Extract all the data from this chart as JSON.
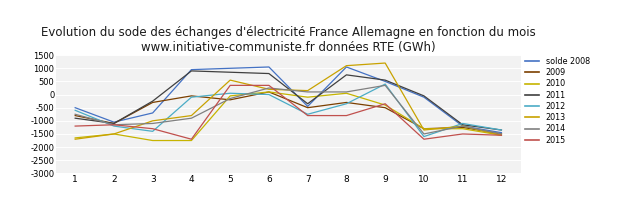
{
  "title": "Evolution du sode des échanges d'électricité France Allemagne en fonction du mois\nwww.initiative-communiste.fr données RTE (GWh)",
  "months": [
    1,
    2,
    3,
    4,
    5,
    6,
    7,
    8,
    9,
    10,
    11,
    12
  ],
  "series": {
    "solde 2008": [
      -500,
      -1050,
      -700,
      950,
      1000,
      1050,
      -450,
      1050,
      500,
      -100,
      -1200,
      -1450
    ],
    "2009": [
      -800,
      -1100,
      -300,
      -50,
      -200,
      100,
      -500,
      -300,
      -500,
      -1300,
      -1250,
      -1500
    ],
    "2010": [
      -1650,
      -1500,
      -1750,
      -1750,
      -50,
      100,
      -100,
      50,
      -400,
      -1300,
      -1300,
      -1550
    ],
    "2011": [
      -900,
      -1100,
      -250,
      900,
      850,
      800,
      -350,
      750,
      550,
      -50,
      -1150,
      -1350
    ],
    "2012": [
      -600,
      -1200,
      -1400,
      -100,
      50,
      0,
      -750,
      -350,
      400,
      -1600,
      -1100,
      -1350
    ],
    "2013": [
      -1700,
      -1500,
      -1000,
      -800,
      550,
      200,
      150,
      1100,
      1200,
      -1350,
      -1200,
      -1550
    ],
    "2014": [
      -750,
      -1150,
      -1100,
      -900,
      -150,
      250,
      100,
      100,
      350,
      -1500,
      -1200,
      -1500
    ],
    "2015": [
      -1200,
      -1150,
      -1300,
      -1700,
      350,
      350,
      -800,
      -800,
      -350,
      -1700,
      -1500,
      -1550
    ]
  },
  "colors": {
    "solde 2008": "#4472C4",
    "2009": "#7B3F00",
    "2010": "#C6B400",
    "2011": "#404040",
    "2012": "#4BACC6",
    "2013": "#C8A200",
    "2014": "#808080",
    "2015": "#C0504D"
  },
  "ylim": [
    -3000,
    1500
  ],
  "yticks": [
    -3000,
    -2500,
    -2000,
    -1500,
    -1000,
    -500,
    0,
    500,
    1000,
    1500
  ],
  "background": "#FFFFFF",
  "plot_bg": "#F2F2F2",
  "title_fontsize": 8.5
}
